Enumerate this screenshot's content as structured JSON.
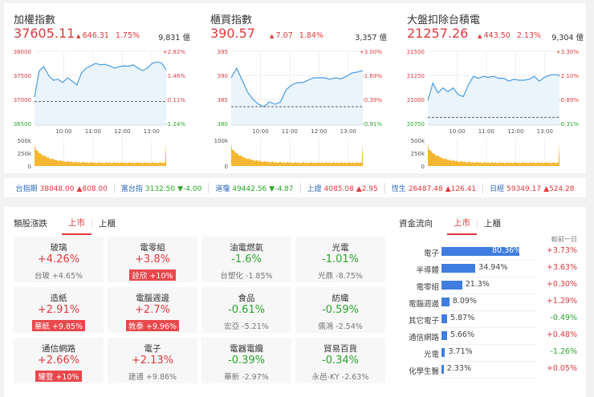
{
  "charts": [
    {
      "title": "加權指數",
      "price": "37605.11",
      "change": "646.31",
      "pct": "1.75%",
      "volume": "9,831 億",
      "y_ticks": [
        "38000",
        "37500",
        "37000",
        "36500"
      ],
      "pct_ticks": [
        "+2.82%",
        "+1.46%",
        "+0.11%",
        "-1.24%"
      ],
      "ylim": [
        36500,
        38000
      ],
      "prev_close": 36958.8,
      "vol_ticks": [
        "500k",
        "250k",
        "0"
      ],
      "series": [
        37050,
        37600,
        37680,
        37500,
        37400,
        37420,
        37350,
        37450,
        37380,
        37300,
        37550,
        37650,
        37700,
        37750,
        37720,
        37730,
        37700,
        37650,
        37680,
        37700,
        37690,
        37720,
        37650,
        37600,
        37650,
        37750,
        37780,
        37760,
        37620
      ]
    },
    {
      "title": "櫃買指數",
      "price": "390.57",
      "change": "7.07",
      "pct": "1.84%",
      "volume": "3,357 億",
      "y_ticks": [
        "395",
        "390",
        "385",
        "380"
      ],
      "pct_ticks": [
        "+3.00%",
        "+1.69%",
        "+0.39%",
        "-0.91%"
      ],
      "ylim": [
        380,
        395
      ],
      "prev_close": 383.5,
      "vol_ticks": [
        "100k",
        "0"
      ],
      "series": [
        389.5,
        391.5,
        389,
        386.5,
        385,
        384,
        383.5,
        384.5,
        384,
        384.5,
        387,
        388,
        388.5,
        388.5,
        389,
        389.5,
        389.5,
        389.5,
        389.2,
        389.5,
        389.3,
        389.8,
        390.5,
        390.7,
        391
      ]
    },
    {
      "title": "大盤扣除台積電",
      "price": "21257.26",
      "change": "443.50",
      "pct": "2.13%",
      "volume": "9,304 億",
      "y_ticks": [
        "21500",
        "21250",
        "21000",
        "20750"
      ],
      "pct_ticks": [
        "+3.30%",
        "+2.10%",
        "+0.89%",
        "-0.31%"
      ],
      "ylim": [
        20750,
        21500
      ],
      "prev_close": 20813.76,
      "vol_ticks": [
        "500k",
        "250k",
        "0"
      ],
      "series": [
        20990,
        21170,
        21070,
        21120,
        21080,
        21120,
        21050,
        21030,
        21150,
        21240,
        21220,
        21240,
        21230,
        21240,
        21220,
        21220,
        21190,
        21210,
        21200,
        21200,
        21210,
        21240,
        21190,
        21230,
        21250,
        21260,
        21250
      ]
    }
  ],
  "time_ticks": [
    "10:00",
    "11:00",
    "12:00",
    "13:00"
  ],
  "colors": {
    "up": "#e0393e",
    "down": "#2aa52a",
    "line": "#4a9be0",
    "volume": "#f5b731",
    "bar": "#3f7de0"
  },
  "ticker": [
    {
      "name": "台指期",
      "value": "38048.00",
      "change": "▲808.00",
      "dir": "up"
    },
    {
      "name": "富台指",
      "value": "3132.50",
      "change": "▼-4.00",
      "dir": "dn"
    },
    {
      "name": "道瓊",
      "value": "49442.56",
      "change": "▼-4.87",
      "dir": "dn"
    },
    {
      "name": "上證",
      "value": "4085.08",
      "change": "▲2.95",
      "dir": "up"
    },
    {
      "name": "恆生",
      "value": "26487.48",
      "change": "▲126.41",
      "dir": "up"
    },
    {
      "name": "日經",
      "value": "59349.17",
      "change": "▲524.28",
      "dir": "up"
    }
  ],
  "sectors": {
    "label": "類股漲跌",
    "tabs": [
      "上市",
      "上櫃"
    ],
    "items": [
      {
        "name": "玻璃",
        "pct": "+4.26%",
        "stock": "台玻  +4.65%",
        "dir": "up",
        "hot": false
      },
      {
        "name": "電零組",
        "pct": "+3.8%",
        "stock": "詮欣  +10%",
        "dir": "up",
        "hot": true
      },
      {
        "name": "油電燃氣",
        "pct": "-1.6%",
        "stock": "台塑化  -1.85%",
        "dir": "dn",
        "hot": false
      },
      {
        "name": "光電",
        "pct": "-1.01%",
        "stock": "光鼎  -8.75%",
        "dir": "dn",
        "hot": false
      },
      {
        "name": "造紙",
        "pct": "+2.91%",
        "stock": "華紙  +9.85%",
        "dir": "up",
        "hot": true
      },
      {
        "name": "電腦週邊",
        "pct": "+2.7%",
        "stock": "敦泰  +9.96%",
        "dir": "up",
        "hot": true
      },
      {
        "name": "食品",
        "pct": "-0.61%",
        "stock": "宏亞  -5.21%",
        "dir": "dn",
        "hot": false
      },
      {
        "name": "紡織",
        "pct": "-0.59%",
        "stock": "儒鴻  -2.54%",
        "dir": "dn",
        "hot": false
      },
      {
        "name": "通信網路",
        "pct": "+2.66%",
        "stock": "耀登  +10%",
        "dir": "up",
        "hot": true
      },
      {
        "name": "電子",
        "pct": "+2.13%",
        "stock": "建通  +9.86%",
        "dir": "up",
        "hot": false
      },
      {
        "name": "電器電纜",
        "pct": "-0.39%",
        "stock": "華新  -2.97%",
        "dir": "dn",
        "hot": false
      },
      {
        "name": "貿易百貨",
        "pct": "-0.34%",
        "stock": "永邑-KY  -2.63%",
        "dir": "dn",
        "hot": false
      }
    ]
  },
  "flow": {
    "label": "資金流向",
    "tabs": [
      "上市",
      "上櫃"
    ],
    "col_header": "較前一日",
    "items": [
      {
        "name": "電子",
        "share": 80.36,
        "share_label": "80.36%",
        "diff": "+3.73%",
        "dir": "up"
      },
      {
        "name": "半導體",
        "share": 34.94,
        "share_label": "34.94%",
        "diff": "+3.63%",
        "dir": "up"
      },
      {
        "name": "電零組",
        "share": 21.3,
        "share_label": "21.3%",
        "diff": "+0.30%",
        "dir": "up"
      },
      {
        "name": "電腦週邊",
        "share": 8.09,
        "share_label": "8.09%",
        "diff": "+1.29%",
        "dir": "up"
      },
      {
        "name": "其它電子",
        "share": 5.87,
        "share_label": "5.87%",
        "diff": "-0.49%",
        "dir": "dn"
      },
      {
        "name": "通信網路",
        "share": 5.66,
        "share_label": "5.66%",
        "diff": "+0.48%",
        "dir": "up"
      },
      {
        "name": "光電",
        "share": 3.71,
        "share_label": "3.71%",
        "diff": "-1.26%",
        "dir": "dn"
      },
      {
        "name": "化學生醫",
        "share": 2.33,
        "share_label": "2.33%",
        "diff": "+0.05%",
        "dir": "up"
      }
    ]
  }
}
